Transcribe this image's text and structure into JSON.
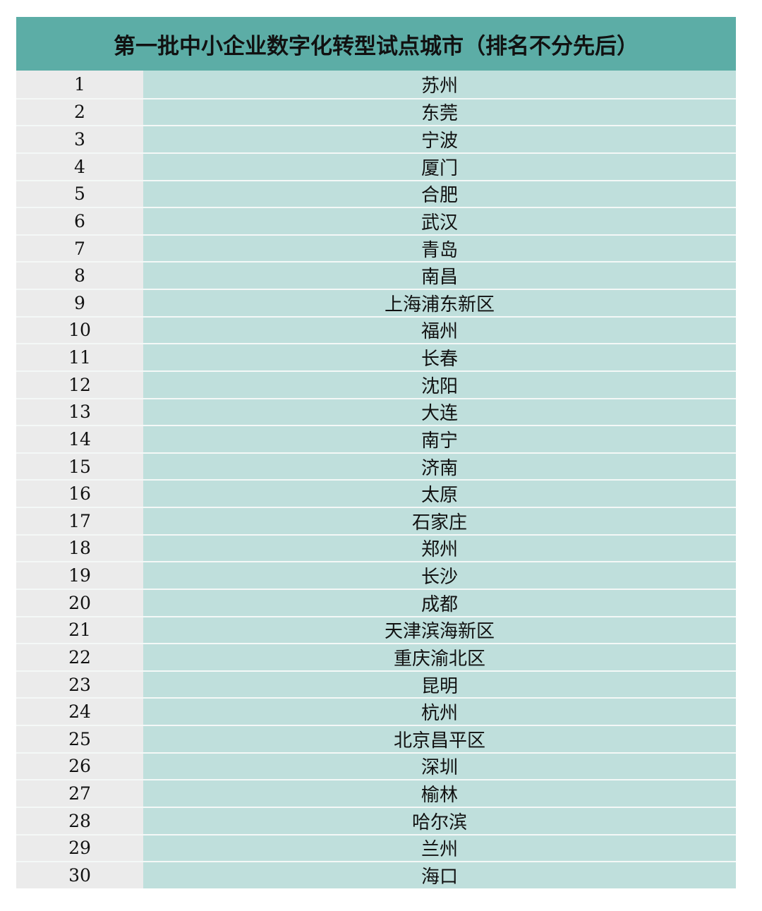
{
  "title": "第一批中小企业数字化转型试点城市（排名不分先后）",
  "colors": {
    "header": "#5cada6",
    "index_column": "#ebebeb",
    "city_column": "#bfdfdc"
  },
  "rows": [
    {
      "no": "1",
      "city": "苏州"
    },
    {
      "no": "2",
      "city": "东莞"
    },
    {
      "no": "3",
      "city": "宁波"
    },
    {
      "no": "4",
      "city": "厦门"
    },
    {
      "no": "5",
      "city": "合肥"
    },
    {
      "no": "6",
      "city": "武汉"
    },
    {
      "no": "7",
      "city": "青岛"
    },
    {
      "no": "8",
      "city": "南昌"
    },
    {
      "no": "9",
      "city": "上海浦东新区"
    },
    {
      "no": "10",
      "city": "福州"
    },
    {
      "no": "11",
      "city": "长春"
    },
    {
      "no": "12",
      "city": "沈阳"
    },
    {
      "no": "13",
      "city": "大连"
    },
    {
      "no": "14",
      "city": "南宁"
    },
    {
      "no": "15",
      "city": "济南"
    },
    {
      "no": "16",
      "city": "太原"
    },
    {
      "no": "17",
      "city": "石家庄"
    },
    {
      "no": "18",
      "city": "郑州"
    },
    {
      "no": "19",
      "city": "长沙"
    },
    {
      "no": "20",
      "city": "成都"
    },
    {
      "no": "21",
      "city": "天津滨海新区"
    },
    {
      "no": "22",
      "city": "重庆渝北区"
    },
    {
      "no": "23",
      "city": "昆明"
    },
    {
      "no": "24",
      "city": "杭州"
    },
    {
      "no": "25",
      "city": "北京昌平区"
    },
    {
      "no": "26",
      "city": "深圳"
    },
    {
      "no": "27",
      "city": "榆林"
    },
    {
      "no": "28",
      "city": "哈尔滨"
    },
    {
      "no": "29",
      "city": "兰州"
    },
    {
      "no": "30",
      "city": "海口"
    }
  ]
}
